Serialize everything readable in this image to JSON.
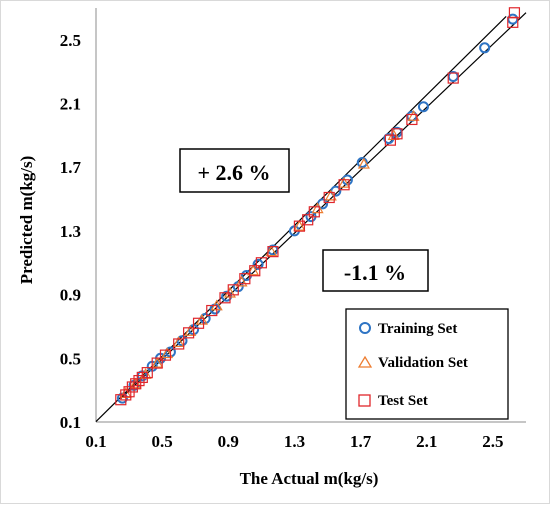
{
  "chart_data": {
    "type": "scatter",
    "xlabel": "The Actual m(kg/s)",
    "ylabel": "Predicted m(kg/s)",
    "xlim": [
      0.1,
      2.7
    ],
    "ylim": [
      0.1,
      2.7
    ],
    "xticks": [
      "0.1",
      "0.5",
      "0.9",
      "1.3",
      "1.7",
      "2.1",
      "2.5"
    ],
    "yticks": [
      "0.1",
      "0.5",
      "0.9",
      "1.3",
      "1.7",
      "2.1",
      "2.5"
    ],
    "xtick_values": [
      0.1,
      0.5,
      0.9,
      1.3,
      1.7,
      2.1,
      2.5
    ],
    "ytick_values": [
      0.1,
      0.5,
      0.9,
      1.3,
      1.7,
      2.1,
      2.5
    ],
    "grid": false,
    "legend_position": "bottom-right",
    "annotations": [
      "+ 2.6 %",
      "-1.1 %"
    ],
    "reference_lines": [
      {
        "label": "+ 2.6 %",
        "slope": 1.026
      },
      {
        "label": "-1.1 %",
        "slope": 0.989
      }
    ],
    "series": [
      {
        "name": "Training Set",
        "marker": "circle",
        "color": "#2e74c4",
        "x": [
          0.26,
          0.33,
          0.38,
          0.44,
          0.49,
          0.55,
          0.62,
          0.69,
          0.76,
          0.82,
          0.89,
          0.96,
          1.01,
          1.08,
          1.17,
          1.3,
          1.4,
          1.47,
          1.55,
          1.62,
          1.71,
          1.87,
          1.92,
          2.01,
          2.08,
          2.26,
          2.45,
          2.62
        ],
        "y": [
          0.25,
          0.33,
          0.39,
          0.45,
          0.5,
          0.54,
          0.61,
          0.68,
          0.75,
          0.81,
          0.89,
          0.95,
          1.02,
          1.09,
          1.18,
          1.3,
          1.39,
          1.47,
          1.55,
          1.62,
          1.73,
          1.88,
          1.92,
          2.02,
          2.08,
          2.27,
          2.45,
          2.63
        ]
      },
      {
        "name": "Validation Set",
        "marker": "triangle",
        "color": "#ed7d31",
        "x": [
          0.28,
          0.34,
          0.4,
          0.47,
          0.53,
          0.6,
          0.67,
          0.74,
          0.83,
          0.91,
          0.98,
          1.05,
          1.16,
          1.33,
          1.44,
          1.52,
          1.6,
          1.72,
          1.9,
          2.02
        ],
        "y": [
          0.28,
          0.34,
          0.4,
          0.47,
          0.53,
          0.6,
          0.67,
          0.74,
          0.83,
          0.91,
          0.98,
          1.05,
          1.17,
          1.33,
          1.44,
          1.52,
          1.6,
          1.72,
          1.9,
          2.02
        ]
      },
      {
        "name": "Test Set",
        "marker": "square",
        "color": "#e0262b",
        "x": [
          0.25,
          0.28,
          0.3,
          0.32,
          0.34,
          0.36,
          0.38,
          0.41,
          0.47,
          0.52,
          0.6,
          0.66,
          0.72,
          0.8,
          0.88,
          0.93,
          1.0,
          1.06,
          1.1,
          1.17,
          1.33,
          1.38,
          1.42,
          1.51,
          1.6,
          1.88,
          1.92,
          2.01,
          2.26,
          2.62,
          2.63
        ],
        "y": [
          0.24,
          0.27,
          0.29,
          0.32,
          0.34,
          0.36,
          0.38,
          0.41,
          0.47,
          0.52,
          0.59,
          0.66,
          0.72,
          0.8,
          0.88,
          0.93,
          1.0,
          1.05,
          1.1,
          1.17,
          1.33,
          1.37,
          1.42,
          1.51,
          1.59,
          1.87,
          1.91,
          2.0,
          2.26,
          2.61,
          2.67
        ]
      }
    ]
  }
}
